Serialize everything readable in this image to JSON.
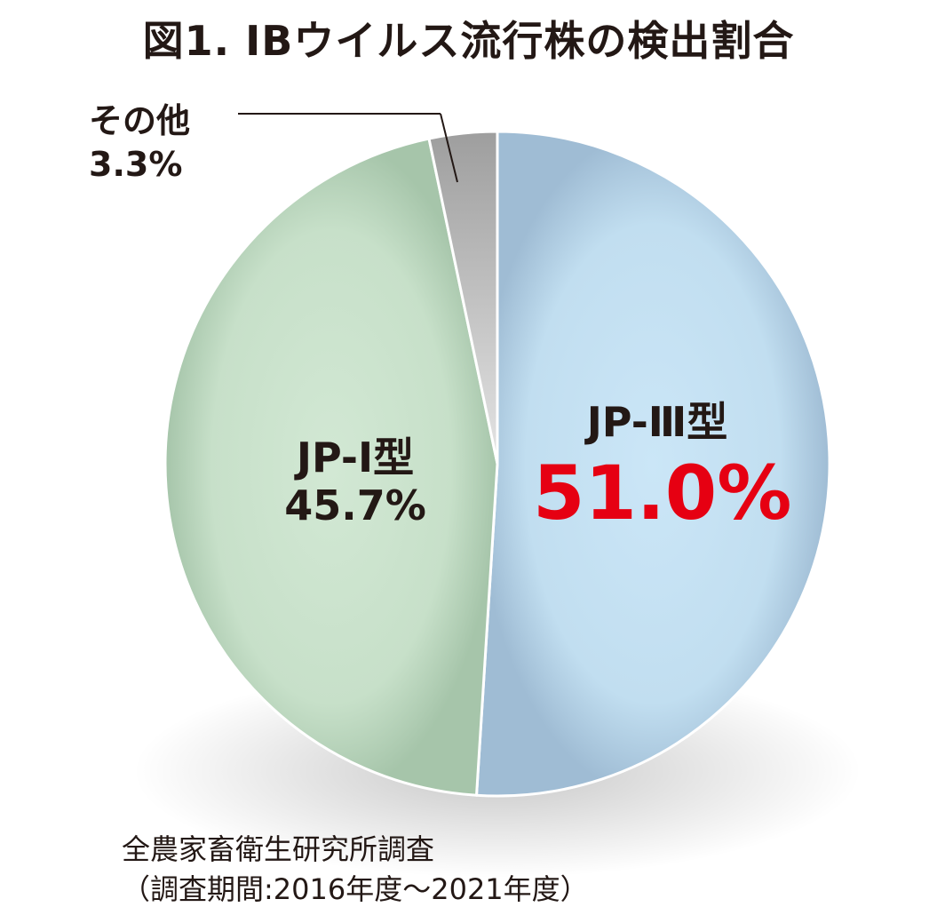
{
  "title": "図1. IBウイルス流行株の検出割合",
  "chart_data": {
    "type": "pie",
    "title": "図1. IBウイルス流行株の検出割合",
    "slices": [
      {
        "label": "JP-Ⅲ型",
        "value": 51.0,
        "display": "51.0%",
        "color": "#c4e0f1"
      },
      {
        "label": "JP-Ⅰ型",
        "value": 45.7,
        "display": "45.7%",
        "color": "#cce4cf"
      },
      {
        "label": "その他",
        "value": 3.3,
        "display": "3.3%",
        "color": "#d4d4d4"
      }
    ],
    "start": "12 o'clock, clockwise",
    "highlight_color": "#e60012",
    "legend": "none (direct labels)"
  },
  "source": {
    "line1": "全農家畜衛生研究所調査",
    "line2": "（調査期間:2016年度～2021年度）"
  }
}
